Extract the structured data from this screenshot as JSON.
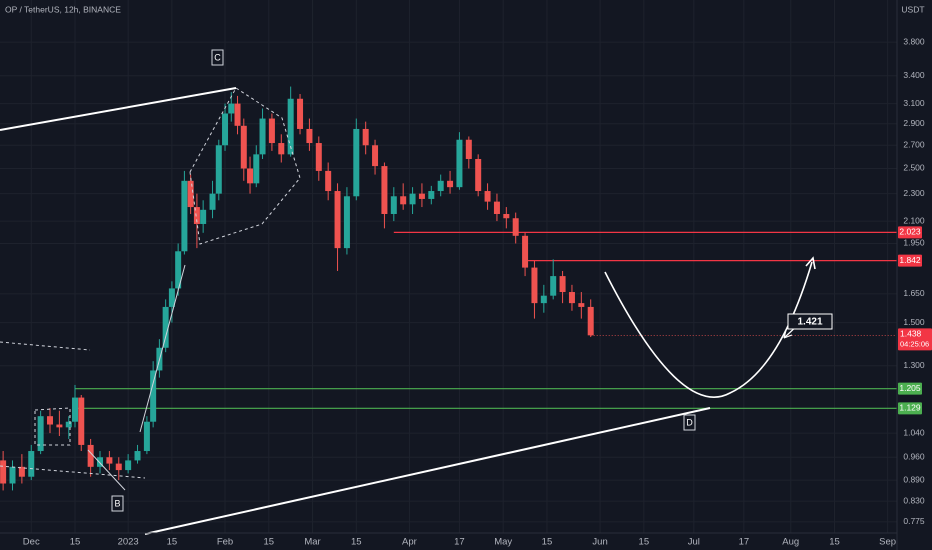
{
  "chart_data": {
    "type": "candlestick",
    "title": "OP / TetherUS, 12h, BINANCE",
    "y_axis_label": "USDT",
    "log_scale": true,
    "grid": true,
    "up_color": "#26a69a",
    "down_color": "#ef5350",
    "x": [
      "2022-11-22",
      "2022-11-25",
      "2022-11-28",
      "2022-12-01",
      "2022-12-04",
      "2022-12-07",
      "2022-12-10",
      "2022-12-13",
      "2022-12-15",
      "2022-12-17",
      "2022-12-20",
      "2022-12-23",
      "2022-12-26",
      "2022-12-29",
      "2023-01-01",
      "2023-01-04",
      "2023-01-07",
      "2023-01-09",
      "2023-01-11",
      "2023-01-13",
      "2023-01-15",
      "2023-01-17",
      "2023-01-19",
      "2023-01-21",
      "2023-01-23",
      "2023-01-25",
      "2023-01-28",
      "2023-01-30",
      "2023-02-01",
      "2023-02-03",
      "2023-02-05",
      "2023-02-07",
      "2023-02-09",
      "2023-02-11",
      "2023-02-13",
      "2023-02-16",
      "2023-02-19",
      "2023-02-22",
      "2023-02-25",
      "2023-02-28",
      "2023-03-03",
      "2023-03-06",
      "2023-03-09",
      "2023-03-12",
      "2023-03-15",
      "2023-03-18",
      "2023-03-21",
      "2023-03-24",
      "2023-03-27",
      "2023-03-30",
      "2023-04-02",
      "2023-04-05",
      "2023-04-08",
      "2023-04-11",
      "2023-04-14",
      "2023-04-17",
      "2023-04-20",
      "2023-04-23",
      "2023-04-26",
      "2023-04-29",
      "2023-05-02",
      "2023-05-05",
      "2023-05-08",
      "2023-05-11",
      "2023-05-14",
      "2023-05-17",
      "2023-05-20",
      "2023-05-23",
      "2023-05-26",
      "2023-05-29"
    ],
    "open": [
      0.95,
      0.88,
      0.93,
      0.9,
      0.98,
      1.1,
      1.07,
      1.06,
      1.08,
      1.17,
      1.0,
      0.93,
      0.96,
      0.94,
      0.92,
      0.95,
      0.98,
      1.08,
      1.28,
      1.38,
      1.58,
      1.68,
      1.9,
      2.4,
      2.2,
      2.08,
      2.18,
      2.3,
      2.7,
      3.0,
      3.1,
      2.88,
      2.5,
      2.38,
      2.62,
      2.95,
      2.72,
      2.62,
      3.15,
      2.85,
      2.72,
      2.48,
      2.32,
      1.92,
      2.28,
      2.85,
      2.7,
      2.52,
      2.15,
      2.28,
      2.22,
      2.3,
      2.26,
      2.32,
      2.4,
      2.35,
      2.75,
      2.58,
      2.32,
      2.24,
      2.15,
      2.12,
      2.0,
      1.8,
      1.6,
      1.64,
      1.75,
      1.66,
      1.6,
      1.58
    ],
    "high": [
      0.98,
      0.95,
      0.97,
      1.0,
      1.12,
      1.13,
      1.12,
      1.1,
      1.22,
      1.18,
      1.02,
      0.98,
      0.98,
      0.96,
      0.97,
      1.0,
      1.1,
      1.32,
      1.42,
      1.62,
      1.72,
      1.95,
      2.48,
      2.45,
      2.3,
      2.25,
      2.4,
      2.75,
      3.1,
      3.22,
      3.18,
      2.95,
      2.6,
      2.7,
      3.05,
      3.0,
      2.8,
      3.28,
      3.2,
      2.95,
      2.78,
      2.55,
      2.38,
      2.35,
      2.95,
      2.92,
      2.75,
      2.55,
      2.35,
      2.38,
      2.35,
      2.38,
      2.36,
      2.45,
      2.48,
      2.82,
      2.78,
      2.62,
      2.38,
      2.3,
      2.2,
      2.16,
      2.02,
      1.84,
      1.7,
      1.85,
      1.78,
      1.7,
      1.66,
      1.62
    ],
    "low": [
      0.86,
      0.86,
      0.88,
      0.89,
      0.97,
      1.04,
      1.03,
      1.02,
      1.06,
      0.98,
      0.9,
      0.91,
      0.92,
      0.89,
      0.91,
      0.94,
      0.97,
      1.06,
      1.25,
      1.36,
      1.5,
      1.64,
      1.88,
      2.15,
      1.92,
      2.02,
      2.12,
      2.25,
      2.65,
      2.92,
      2.8,
      2.4,
      2.3,
      2.35,
      2.58,
      2.65,
      2.55,
      2.6,
      2.8,
      2.65,
      2.4,
      2.25,
      1.78,
      1.88,
      2.25,
      2.62,
      2.45,
      2.05,
      2.1,
      2.18,
      2.15,
      2.2,
      2.22,
      2.28,
      2.3,
      2.33,
      2.5,
      2.28,
      2.18,
      2.1,
      2.05,
      1.95,
      1.75,
      1.52,
      1.55,
      1.62,
      1.6,
      1.56,
      1.52,
      1.43
    ],
    "close": [
      0.88,
      0.93,
      0.9,
      0.98,
      1.1,
      1.07,
      1.06,
      1.08,
      1.17,
      1.0,
      0.93,
      0.96,
      0.94,
      0.92,
      0.95,
      0.98,
      1.08,
      1.28,
      1.38,
      1.58,
      1.68,
      1.9,
      2.4,
      2.2,
      2.08,
      2.18,
      2.3,
      2.7,
      3.0,
      3.1,
      2.88,
      2.5,
      2.38,
      2.62,
      2.95,
      2.72,
      2.62,
      3.15,
      2.85,
      2.72,
      2.48,
      2.32,
      1.92,
      2.28,
      2.85,
      2.7,
      2.52,
      2.15,
      2.28,
      2.22,
      2.3,
      2.26,
      2.32,
      2.4,
      2.35,
      2.75,
      2.58,
      2.32,
      2.24,
      2.15,
      2.12,
      2.0,
      1.8,
      1.6,
      1.64,
      1.75,
      1.66,
      1.6,
      1.58,
      1.438
    ],
    "xlim": [
      "2022-11-21",
      "2023-09-04"
    ],
    "xticks": [
      {
        "value": "2022-12-01",
        "label": "Dec"
      },
      {
        "value": "2022-12-15",
        "label": "15"
      },
      {
        "value": "2023-01-01",
        "label": "2023"
      },
      {
        "value": "2023-01-15",
        "label": "15"
      },
      {
        "value": "2023-02-01",
        "label": "Feb"
      },
      {
        "value": "2023-02-15",
        "label": "15"
      },
      {
        "value": "2023-03-01",
        "label": "Mar"
      },
      {
        "value": "2023-03-15",
        "label": "15"
      },
      {
        "value": "2023-04-01",
        "label": "Apr"
      },
      {
        "value": "2023-04-17",
        "label": "17"
      },
      {
        "value": "2023-05-01",
        "label": "May"
      },
      {
        "value": "2023-05-15",
        "label": "15"
      },
      {
        "value": "2023-06-01",
        "label": "Jun"
      },
      {
        "value": "2023-06-15",
        "label": "15"
      },
      {
        "value": "2023-07-01",
        "label": "Jul"
      },
      {
        "value": "2023-07-17",
        "label": "17"
      },
      {
        "value": "2023-08-01",
        "label": "Aug"
      },
      {
        "value": "2023-08-15",
        "label": "15"
      },
      {
        "value": "2023-09-01",
        "label": "Sep"
      }
    ],
    "ylim": [
      0.737,
      4.37
    ],
    "yticks": [
      {
        "value": 3.8,
        "label": "3.800"
      },
      {
        "value": 3.4,
        "label": "3.400"
      },
      {
        "value": 3.1,
        "label": "3.100"
      },
      {
        "value": 2.9,
        "label": "2.900"
      },
      {
        "value": 2.7,
        "label": "2.700"
      },
      {
        "value": 2.5,
        "label": "2.500"
      },
      {
        "value": 2.3,
        "label": "2.300"
      },
      {
        "value": 2.1,
        "label": "2.100"
      },
      {
        "value": 1.95,
        "label": "1.950"
      },
      {
        "value": 1.65,
        "label": "1.650"
      },
      {
        "value": 1.5,
        "label": "1.500"
      },
      {
        "value": 1.3,
        "label": "1.300"
      },
      {
        "value": 1.04,
        "label": "1.040"
      },
      {
        "value": 0.96,
        "label": "0.960"
      },
      {
        "value": 0.89,
        "label": "0.890"
      },
      {
        "value": 0.83,
        "label": "0.830"
      },
      {
        "value": 0.775,
        "label": "0.775"
      }
    ],
    "levels": [
      {
        "value": 2.023,
        "color": "#f23645",
        "start": "2023-03-27"
      },
      {
        "value": 1.842,
        "color": "#f23645",
        "start": "2023-05-08"
      },
      {
        "value": 1.205,
        "color": "#4caf50",
        "start": "2022-12-15"
      },
      {
        "value": 1.129,
        "color": "#4caf50",
        "start": "2022-12-15"
      }
    ],
    "last_price": 1.438,
    "countdown": "04:25:06",
    "target_label": 1.421,
    "wave_labels": [
      "C",
      "B",
      "D"
    ]
  }
}
